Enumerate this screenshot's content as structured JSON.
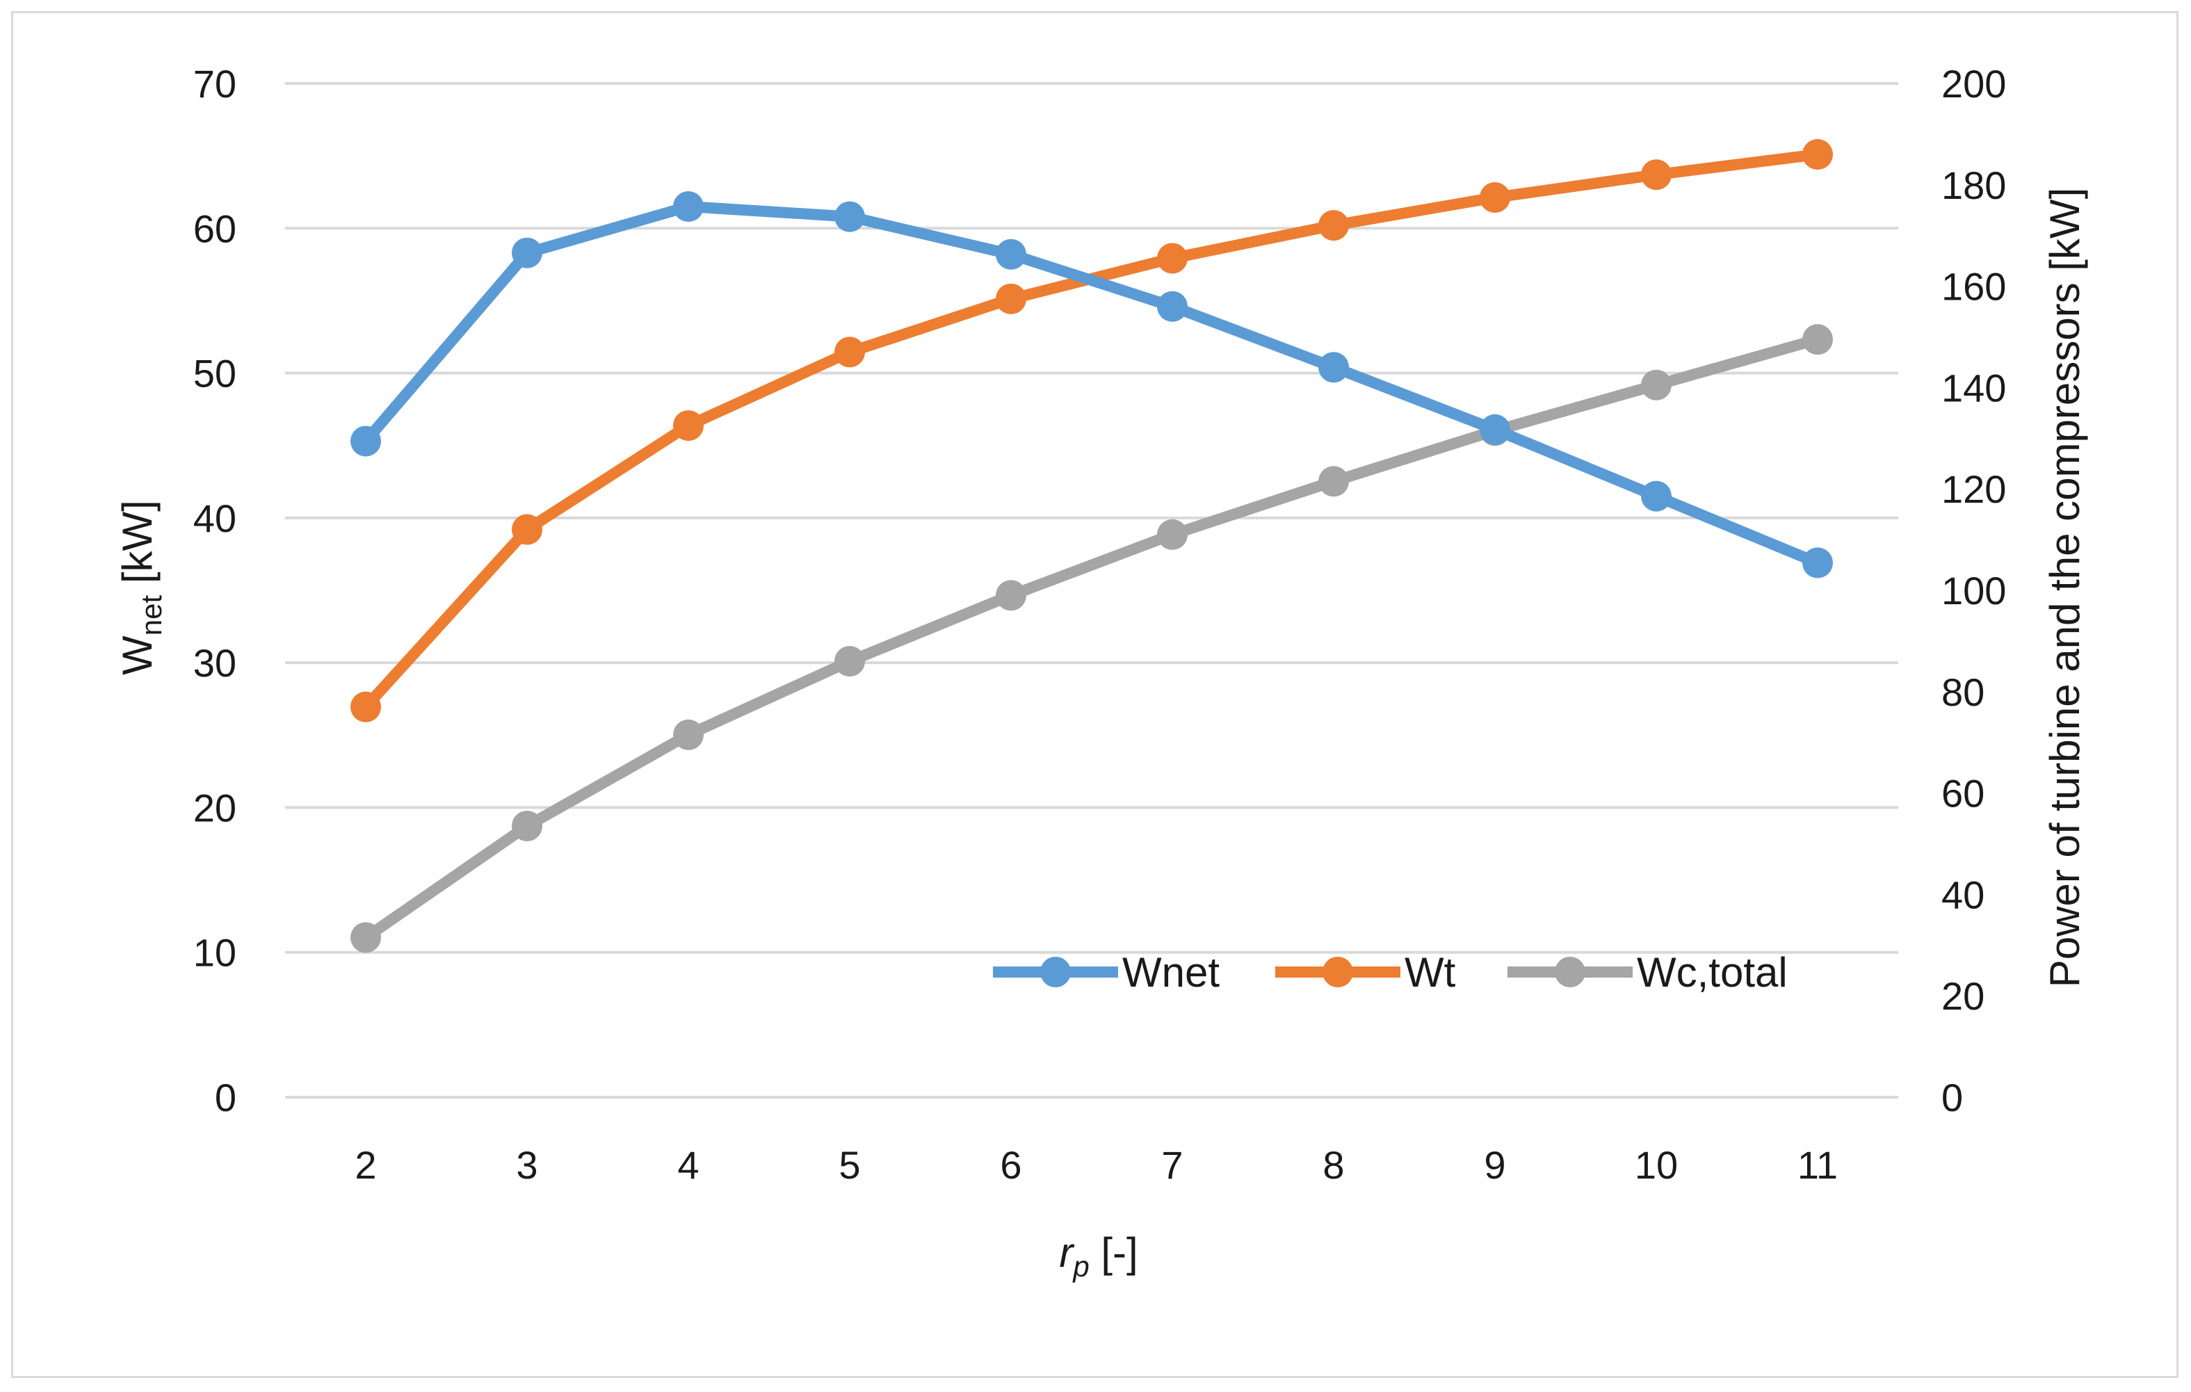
{
  "chart_data": {
    "type": "line",
    "x": [
      2,
      3,
      4,
      5,
      6,
      7,
      8,
      9,
      10,
      11
    ],
    "xlabel_main": "r",
    "xlabel_sub": "p",
    "xlabel_suffix": " [-]",
    "ylabel_left_main": "W",
    "ylabel_left_sub": "net",
    "ylabel_left_suffix": " [kW]",
    "ylabel_right": "Power of turbine and the compressors [kW]",
    "ylim_left": [
      0,
      70
    ],
    "ylim_right": [
      0,
      200
    ],
    "yticks_left": [
      0,
      10,
      20,
      30,
      40,
      50,
      60,
      70
    ],
    "yticks_right": [
      0,
      20,
      40,
      60,
      80,
      100,
      120,
      140,
      160,
      180,
      200
    ],
    "grid": true,
    "legend_position": "bottom-right",
    "series": [
      {
        "name": "Wnet",
        "axis": "left",
        "color": "#5b9bd5",
        "values": [
          45.3,
          58.3,
          61.5,
          60.8,
          58.2,
          54.6,
          50.4,
          46.1,
          41.5,
          36.9
        ]
      },
      {
        "name": "Wt",
        "axis": "right",
        "color": "#ed7d31",
        "values": [
          77,
          112,
          132.5,
          147,
          157.5,
          165.5,
          172,
          177.5,
          182,
          186
        ]
      },
      {
        "name": "Wc,total",
        "axis": "right",
        "color": "#a5a5a5",
        "values": [
          31.5,
          53.5,
          71.5,
          86,
          99,
          111,
          121.5,
          131.5,
          140.5,
          149.5
        ]
      }
    ]
  }
}
